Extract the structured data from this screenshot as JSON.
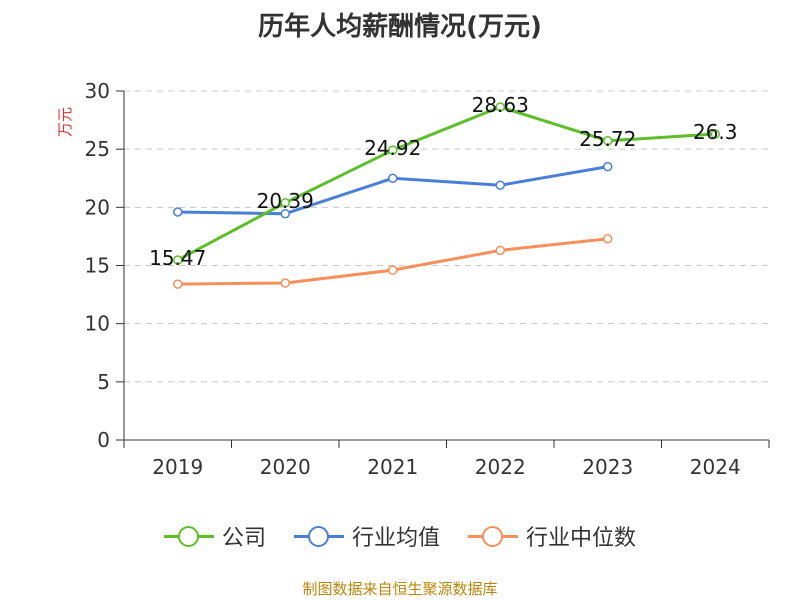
{
  "chart_data": {
    "type": "line",
    "title": "历年人均薪酬情况(万元)",
    "ylabel": "万元",
    "xlabel": "",
    "categories": [
      "2019",
      "2020",
      "2021",
      "2022",
      "2023",
      "2024"
    ],
    "ylim": [
      0,
      30
    ],
    "yticks": [
      0,
      5,
      10,
      15,
      20,
      25,
      30
    ],
    "grid": true,
    "legend_position": "bottom",
    "series": [
      {
        "name": "公司",
        "color": "#5cbf2a",
        "show_labels": true,
        "values": [
          15.47,
          20.39,
          24.92,
          28.63,
          25.72,
          26.3
        ],
        "labels": [
          "15.47",
          "20.39",
          "24.92",
          "28.63",
          "25.72",
          "26.3"
        ]
      },
      {
        "name": "行业均值",
        "color": "#4a7fd6",
        "show_labels": false,
        "values": [
          19.6,
          19.45,
          22.5,
          21.9,
          23.5,
          null
        ]
      },
      {
        "name": "行业中位数",
        "color": "#f5905a",
        "show_labels": false,
        "values": [
          13.4,
          13.5,
          14.6,
          16.3,
          17.3,
          null
        ]
      }
    ],
    "source": "制图数据来自恒生聚源数据库"
  }
}
